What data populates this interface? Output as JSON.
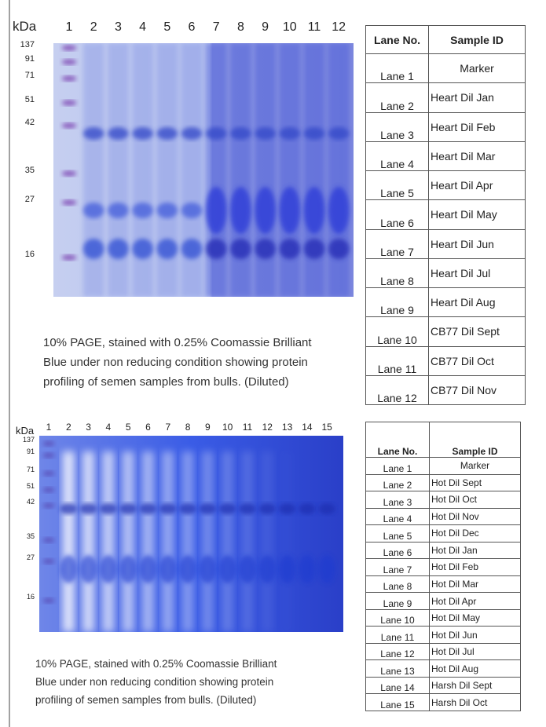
{
  "panels": [
    {
      "kda_label": "kDa",
      "lanes": [
        "1",
        "2",
        "3",
        "4",
        "5",
        "6",
        "7",
        "8",
        "9",
        "10",
        "11",
        "12"
      ],
      "markers": [
        "137",
        "91",
        "71",
        "51",
        "42",
        "35",
        "27",
        "16"
      ],
      "caption": [
        "10% PAGE, stained with 0.25% Coomassie Brilliant",
        "Blue under non reducing condition showing protein",
        "profiling of semen samples from bulls. (Diluted)"
      ],
      "table": {
        "header": [
          "Lane No.",
          "Sample ID"
        ],
        "rows": [
          [
            "Lane 1",
            "Marker"
          ],
          [
            "Lane 2",
            "Heart Dil Jan"
          ],
          [
            "Lane 3",
            "Heart Dil Feb"
          ],
          [
            "Lane 4",
            "Heart Dil Mar"
          ],
          [
            "Lane 5",
            "Heart Dil Apr"
          ],
          [
            "Lane 6",
            "Heart Dil May"
          ],
          [
            "Lane 7",
            "Heart Dil Jun"
          ],
          [
            "Lane 8",
            "Heart Dil Jul"
          ],
          [
            "Lane 9",
            "Heart Dil Aug"
          ],
          [
            "Lane 10",
            "CB77 Dil Sept"
          ],
          [
            "Lane 11",
            "CB77 Dil Oct"
          ],
          [
            "Lane 12",
            "CB77 Dil Nov"
          ]
        ]
      }
    },
    {
      "kda_label": "kDa",
      "lanes": [
        "1",
        "2",
        "3",
        "4",
        "5",
        "6",
        "7",
        "8",
        "9",
        "10",
        "11",
        "12",
        "13",
        "14",
        "15"
      ],
      "markers": [
        "137",
        "91",
        "71",
        "51",
        "42",
        "35",
        "27",
        "16"
      ],
      "caption": [
        "10% PAGE, stained with 0.25% Coomassie Brilliant",
        "Blue under non reducing condition showing protein",
        "profiling of semen samples from bulls. (Diluted)"
      ],
      "table": {
        "header": [
          "Lane No.",
          "Sample ID"
        ],
        "rows": [
          [
            "Lane 1",
            "Marker"
          ],
          [
            "Lane 2",
            "Hot Dil Sept"
          ],
          [
            "Lane 3",
            "Hot Dil Oct"
          ],
          [
            "Lane 4",
            "Hot Dil Nov"
          ],
          [
            "Lane 5",
            "Hot Dil Dec"
          ],
          [
            "Lane 6",
            "Hot Dil Jan"
          ],
          [
            "Lane 7",
            "Hot Dil Feb"
          ],
          [
            "Lane 8",
            "Hot Dil Mar"
          ],
          [
            "Lane 9",
            "Hot Dil Apr"
          ],
          [
            "Lane 10",
            "Hot Dil May"
          ],
          [
            "Lane 11",
            "Hot Dil Jun"
          ],
          [
            "Lane 12",
            "Hot Dil Jul"
          ],
          [
            "Lane 13",
            "Hot Dil Aug"
          ],
          [
            "Lane 14",
            "Harsh Dil Sept"
          ],
          [
            "Lane 15",
            "Harsh Dil Oct"
          ]
        ]
      }
    }
  ]
}
